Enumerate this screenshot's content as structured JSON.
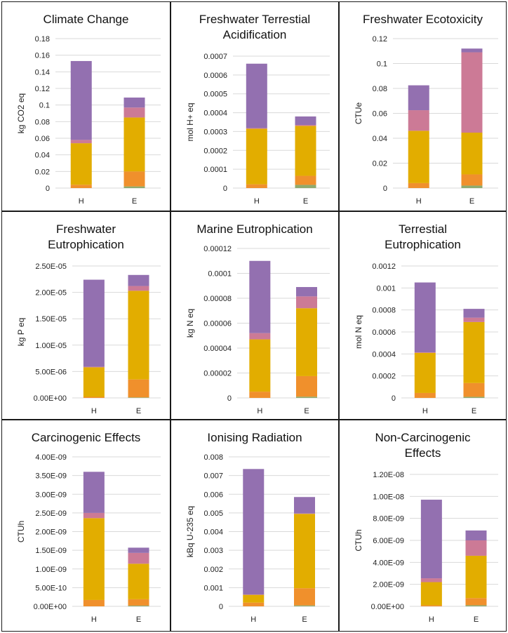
{
  "chart_data": [
    {
      "type": "bar",
      "stacked": true,
      "title": "Climate Change",
      "ylabel": "kg CO2 eq",
      "categories": [
        "H",
        "E"
      ],
      "ylim": [
        0,
        0.18
      ],
      "yticks": [
        "0",
        "0.02",
        "0.04",
        "0.06",
        "0.08",
        "0.1",
        "0.12",
        "0.14",
        "0.16",
        "0.18"
      ],
      "series": [
        {
          "color": "#8faa6e",
          "values": [
            0,
            0.002
          ]
        },
        {
          "color": "#f0902c",
          "values": [
            0.004,
            0.018
          ]
        },
        {
          "color": "#e2ad00",
          "values": [
            0.05,
            0.065
          ]
        },
        {
          "color": "#cc7a96",
          "values": [
            0.004,
            0.012
          ]
        },
        {
          "color": "#9370b0",
          "values": [
            0.095,
            0.012
          ]
        }
      ]
    },
    {
      "type": "bar",
      "stacked": true,
      "title": "Freshwater Terrestial Acidification",
      "ylabel": "mol H+ eq",
      "categories": [
        "H",
        "E"
      ],
      "ylim": [
        0,
        0.0007
      ],
      "yticks": [
        "0",
        "0.0001",
        "0.0002",
        "0.0003",
        "0.0004",
        "0.0005",
        "0.0006",
        "0.0007"
      ],
      "series": [
        {
          "color": "#8faa6e",
          "values": [
            0,
            1.7e-05
          ]
        },
        {
          "color": "#f0902c",
          "values": [
            2e-05,
            4.8e-05
          ]
        },
        {
          "color": "#e2ad00",
          "values": [
            0.000295,
            0.000265
          ]
        },
        {
          "color": "#cc7a96",
          "values": [
            3e-06,
            5e-06
          ]
        },
        {
          "color": "#9370b0",
          "values": [
            0.000342,
            4.5e-05
          ]
        }
      ]
    },
    {
      "type": "bar",
      "stacked": true,
      "title": "Freshwater Ecotoxicity",
      "ylabel": "CTUe",
      "categories": [
        "H",
        "E"
      ],
      "ylim": [
        0,
        0.12
      ],
      "yticks": [
        "0",
        "0.02",
        "0.04",
        "0.06",
        "0.08",
        "0.1",
        "0.12"
      ],
      "series": [
        {
          "color": "#8faa6e",
          "values": [
            0,
            0.002
          ]
        },
        {
          "color": "#f0902c",
          "values": [
            0.004,
            0.009
          ]
        },
        {
          "color": "#e2ad00",
          "values": [
            0.042,
            0.0335
          ]
        },
        {
          "color": "#cc7a96",
          "values": [
            0.0165,
            0.0645
          ]
        },
        {
          "color": "#9370b0",
          "values": [
            0.02,
            0.003
          ]
        }
      ]
    },
    {
      "type": "bar",
      "stacked": true,
      "title": "Freshwater Eutrophication",
      "ylabel": "kg P eq",
      "categories": [
        "H",
        "E"
      ],
      "ylim": [
        0,
        2.5e-05
      ],
      "yticks": [
        "0.00E+00",
        "5.00E-06",
        "1.00E-05",
        "1.50E-05",
        "2.00E-05",
        "2.50E-05"
      ],
      "series": [
        {
          "color": "#8faa6e",
          "values": [
            0,
            1e-07
          ]
        },
        {
          "color": "#f0902c",
          "values": [
            2e-07,
            3.4e-06
          ]
        },
        {
          "color": "#e2ad00",
          "values": [
            5.6e-06,
            1.68e-05
          ]
        },
        {
          "color": "#cc7a96",
          "values": [
            1e-07,
            9e-07
          ]
        },
        {
          "color": "#9370b0",
          "values": [
            1.65e-05,
            2.1e-06
          ]
        }
      ]
    },
    {
      "type": "bar",
      "stacked": true,
      "title": "Marine Eutrophication",
      "ylabel": "kg N eq",
      "categories": [
        "H",
        "E"
      ],
      "ylim": [
        0,
        0.00012
      ],
      "yticks": [
        "0",
        "0.00002",
        "0.00004",
        "0.00006",
        "0.00008",
        "0.0001",
        "0.00012"
      ],
      "series": [
        {
          "color": "#8faa6e",
          "values": [
            0,
            1e-06
          ]
        },
        {
          "color": "#f0902c",
          "values": [
            5e-06,
            1.65e-05
          ]
        },
        {
          "color": "#e2ad00",
          "values": [
            4.2e-05,
            5.45e-05
          ]
        },
        {
          "color": "#cc7a96",
          "values": [
            5e-06,
            9.5e-06
          ]
        },
        {
          "color": "#9370b0",
          "values": [
            5.8e-05,
            7.5e-06
          ]
        }
      ]
    },
    {
      "type": "bar",
      "stacked": true,
      "title": "Terrestial Eutrophication",
      "ylabel": "mol N eq",
      "categories": [
        "H",
        "E"
      ],
      "ylim": [
        0,
        0.0012
      ],
      "yticks": [
        "0",
        "0.0002",
        "0.0004",
        "0.0006",
        "0.0008",
        "0.001",
        "0.0012"
      ],
      "series": [
        {
          "color": "#8faa6e",
          "values": [
            0,
            1e-05
          ]
        },
        {
          "color": "#f0902c",
          "values": [
            4.5e-05,
            0.000125
          ]
        },
        {
          "color": "#e2ad00",
          "values": [
            0.000365,
            0.000555
          ]
        },
        {
          "color": "#cc7a96",
          "values": [
            5e-06,
            4e-05
          ]
        },
        {
          "color": "#9370b0",
          "values": [
            0.000635,
            8e-05
          ]
        }
      ]
    },
    {
      "type": "bar",
      "stacked": true,
      "title": "Carcinogenic Effects",
      "ylabel": "CTUh",
      "categories": [
        "H",
        "E"
      ],
      "ylim": [
        0,
        4e-09
      ],
      "yticks": [
        "0.00E+00",
        "5.00E-10",
        "1.00E-09",
        "1.50E-09",
        "2.00E-09",
        "2.50E-09",
        "3.00E-09",
        "3.50E-09",
        "4.00E-09"
      ],
      "series": [
        {
          "color": "#8faa6e",
          "values": [
            0,
            2e-11
          ]
        },
        {
          "color": "#f0902c",
          "values": [
            1.7e-10,
            1.7e-10
          ]
        },
        {
          "color": "#e2ad00",
          "values": [
            2.19e-09,
            9.5e-10
          ]
        },
        {
          "color": "#cc7a96",
          "values": [
            1.4e-10,
            2.9e-10
          ]
        },
        {
          "color": "#9370b0",
          "values": [
            1.1e-09,
            1.4e-10
          ]
        }
      ]
    },
    {
      "type": "bar",
      "stacked": true,
      "title": "Ionising Radiation",
      "ylabel": "kBq U-235 eq",
      "categories": [
        "H",
        "E"
      ],
      "ylim": [
        0,
        0.008
      ],
      "yticks": [
        "0",
        "0.001",
        "0.002",
        "0.003",
        "0.004",
        "0.005",
        "0.006",
        "0.007",
        "0.008"
      ],
      "series": [
        {
          "color": "#8faa6e",
          "values": [
            0,
            5e-05
          ]
        },
        {
          "color": "#f0902c",
          "values": [
            0.0002,
            0.00092
          ]
        },
        {
          "color": "#e2ad00",
          "values": [
            0.00042,
            0.00398
          ]
        },
        {
          "color": "#cc7a96",
          "values": [
            1e-05,
            2e-05
          ]
        },
        {
          "color": "#9370b0",
          "values": [
            0.00672,
            0.00088
          ]
        }
      ]
    },
    {
      "type": "bar",
      "stacked": true,
      "title": "Non-Carcinogenic Effects",
      "ylabel": "CTUh",
      "categories": [
        "H",
        "E"
      ],
      "ylim": [
        0,
        1.2e-08
      ],
      "yticks": [
        "0.00E+00",
        "2.00E-09",
        "4.00E-09",
        "6.00E-09",
        "8.00E-09",
        "1.00E-08",
        "1.20E-08"
      ],
      "series": [
        {
          "color": "#8faa6e",
          "values": [
            0,
            1e-10
          ]
        },
        {
          "color": "#f0902c",
          "values": [
            1e-10,
            6.5e-10
          ]
        },
        {
          "color": "#e2ad00",
          "values": [
            2.1e-09,
            3.85e-09
          ]
        },
        {
          "color": "#cc7a96",
          "values": [
            3.5e-10,
            1.4e-09
          ]
        },
        {
          "color": "#9370b0",
          "values": [
            7.15e-09,
            9e-10
          ]
        }
      ]
    }
  ]
}
